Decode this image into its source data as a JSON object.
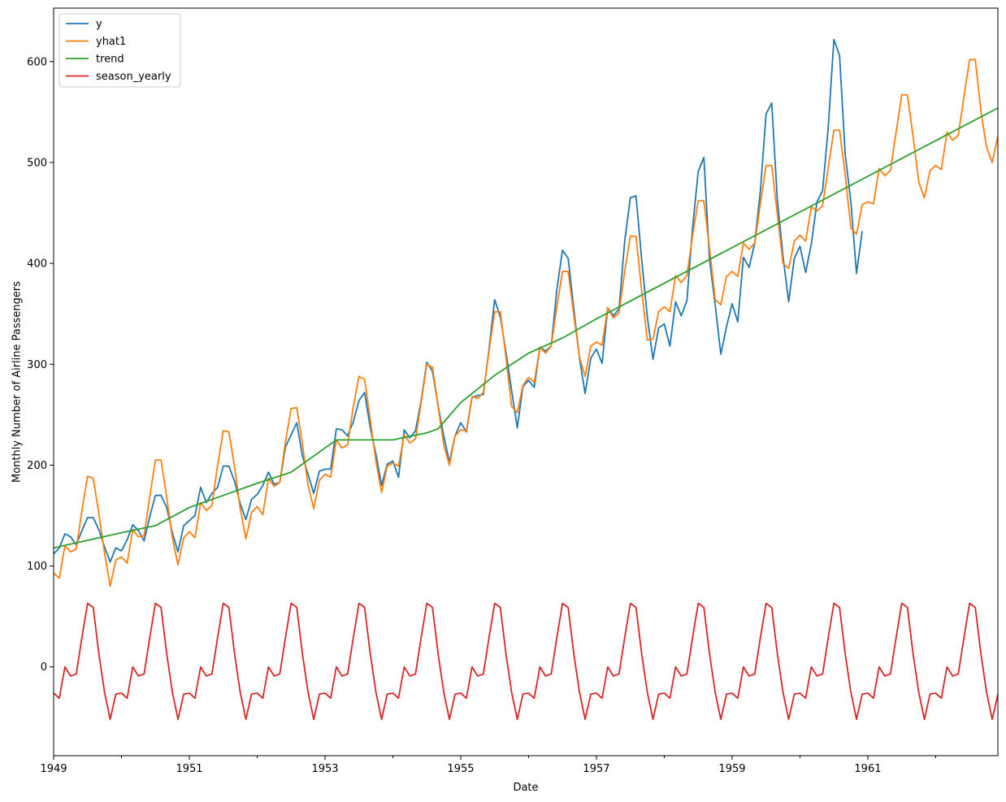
{
  "chart_data": {
    "type": "line",
    "xlabel": "Date",
    "ylabel": "Monthly Number of Airline Passengers",
    "xlim": [
      "1949-01",
      "1962-12"
    ],
    "ylim": [
      -88,
      653
    ],
    "x_tick_labels": [
      "1949",
      "1951",
      "1953",
      "1955",
      "1957",
      "1959",
      "1961"
    ],
    "y_tick_labels": [
      "0",
      "100",
      "200",
      "300",
      "400",
      "500",
      "600"
    ],
    "y_ticks": [
      0,
      100,
      200,
      300,
      400,
      500,
      600
    ],
    "legend_position": "top-left",
    "grid": false,
    "series": [
      {
        "name": "y",
        "color": "#1f77b4",
        "start": "1949-01",
        "values": [
          112,
          118,
          132,
          129,
          121,
          135,
          148,
          148,
          136,
          119,
          104,
          118,
          115,
          126,
          141,
          135,
          125,
          149,
          170,
          170,
          158,
          133,
          114,
          140,
          145,
          150,
          178,
          163,
          172,
          178,
          199,
          199,
          184,
          162,
          146,
          166,
          171,
          180,
          193,
          181,
          183,
          218,
          230,
          242,
          209,
          191,
          172,
          194,
          196,
          196,
          236,
          235,
          229,
          243,
          264,
          272,
          237,
          211,
          180,
          201,
          204,
          188,
          235,
          227,
          234,
          264,
          302,
          293,
          259,
          229,
          203,
          229,
          242,
          233,
          267,
          269,
          270,
          315,
          364,
          347,
          312,
          274,
          237,
          278,
          284,
          277,
          317,
          313,
          318,
          374,
          413,
          405,
          355,
          306,
          271,
          306,
          315,
          301,
          356,
          348,
          355,
          422,
          465,
          467,
          404,
          347,
          305,
          336,
          340,
          318,
          362,
          348,
          363,
          435,
          491,
          505,
          404,
          359,
          310,
          337,
          360,
          342,
          406,
          396,
          420,
          472,
          548,
          559,
          463,
          407,
          362,
          405,
          417,
          391,
          419,
          461,
          472,
          535,
          622,
          606,
          508,
          461,
          390,
          432
        ]
      },
      {
        "name": "yhat1",
        "color": "#ff7f0e",
        "start": "1949-01",
        "values": [
          93,
          88,
          120,
          114,
          117,
          155,
          189,
          187,
          152,
          113,
          80,
          106,
          109,
          103,
          136,
          129,
          130,
          169,
          205,
          205,
          168,
          128,
          101,
          128,
          134,
          128,
          163,
          155,
          160,
          200,
          234,
          233,
          198,
          157,
          127,
          153,
          159,
          151,
          187,
          179,
          183,
          223,
          256,
          257,
          221,
          180,
          157,
          185,
          191,
          188,
          225,
          217,
          220,
          258,
          288,
          285,
          245,
          204,
          173,
          199,
          202,
          199,
          230,
          222,
          226,
          262,
          300,
          297,
          258,
          220,
          200,
          229,
          235,
          234,
          268,
          266,
          272,
          313,
          352,
          352,
          307,
          258,
          252,
          279,
          287,
          282,
          317,
          311,
          318,
          357,
          392,
          392,
          349,
          307,
          288,
          318,
          322,
          319,
          356,
          346,
          351,
          392,
          427,
          427,
          373,
          324,
          325,
          352,
          357,
          352,
          388,
          381,
          388,
          427,
          462,
          462,
          415,
          364,
          359,
          387,
          392,
          387,
          420,
          414,
          420,
          459,
          497,
          497,
          449,
          400,
          395,
          422,
          428,
          422,
          456,
          452,
          457,
          495,
          532,
          532,
          488,
          435,
          429,
          458,
          461,
          459,
          494,
          487,
          492,
          530,
          567,
          567,
          526,
          481,
          465,
          492,
          497,
          493,
          530,
          522,
          527,
          565,
          602,
          602,
          551,
          515,
          500,
          526
        ]
      },
      {
        "name": "trend",
        "color": "#2ca02c",
        "points": [
          [
            "1949-01",
            118
          ],
          [
            "1950-01",
            133
          ],
          [
            "1950-07",
            140
          ],
          [
            "1951-01",
            158
          ],
          [
            "1951-07",
            170
          ],
          [
            "1952-01",
            182
          ],
          [
            "1952-07",
            193
          ],
          [
            "1953-01",
            217
          ],
          [
            "1953-03",
            225
          ],
          [
            "1954-01",
            225
          ],
          [
            "1954-07",
            232
          ],
          [
            "1954-09",
            236
          ],
          [
            "1955-01",
            262
          ],
          [
            "1955-07",
            289
          ],
          [
            "1956-01",
            311
          ],
          [
            "1956-07",
            326
          ],
          [
            "1957-01",
            345
          ],
          [
            "1962-12",
            554
          ]
        ]
      },
      {
        "name": "season_yearly",
        "color": "#d62728",
        "start": "1949-01",
        "values": [
          -26,
          -31,
          0,
          -9,
          -7,
          29,
          63,
          59,
          13,
          -25,
          -52,
          -27,
          -26,
          -31,
          0,
          -9,
          -7,
          29,
          63,
          59,
          13,
          -25,
          -52,
          -27,
          -26,
          -31,
          0,
          -9,
          -7,
          29,
          63,
          59,
          13,
          -25,
          -52,
          -27,
          -26,
          -31,
          0,
          -9,
          -7,
          29,
          63,
          59,
          13,
          -25,
          -52,
          -27,
          -26,
          -31,
          0,
          -9,
          -7,
          29,
          63,
          59,
          13,
          -25,
          -52,
          -27,
          -26,
          -31,
          0,
          -9,
          -7,
          29,
          63,
          59,
          13,
          -25,
          -52,
          -27,
          -26,
          -31,
          0,
          -9,
          -7,
          29,
          63,
          59,
          13,
          -25,
          -52,
          -27,
          -26,
          -31,
          0,
          -9,
          -7,
          29,
          63,
          59,
          13,
          -25,
          -52,
          -27,
          -26,
          -31,
          0,
          -9,
          -7,
          29,
          63,
          59,
          13,
          -25,
          -52,
          -27,
          -26,
          -31,
          0,
          -9,
          -7,
          29,
          63,
          59,
          13,
          -25,
          -52,
          -27,
          -26,
          -31,
          0,
          -9,
          -7,
          29,
          63,
          59,
          13,
          -25,
          -52,
          -27,
          -26,
          -31,
          0,
          -9,
          -7,
          29,
          63,
          59,
          13,
          -25,
          -52,
          -27,
          -26,
          -31,
          0,
          -9,
          -7,
          29,
          63,
          59,
          13,
          -25,
          -52,
          -27,
          -26,
          -31,
          0,
          -9,
          -7,
          29,
          63,
          59,
          13,
          -25,
          -52,
          -27,
          -26,
          -31,
          0,
          -9,
          -7,
          29,
          63,
          59,
          13,
          -25,
          -52,
          -27
        ]
      }
    ]
  }
}
